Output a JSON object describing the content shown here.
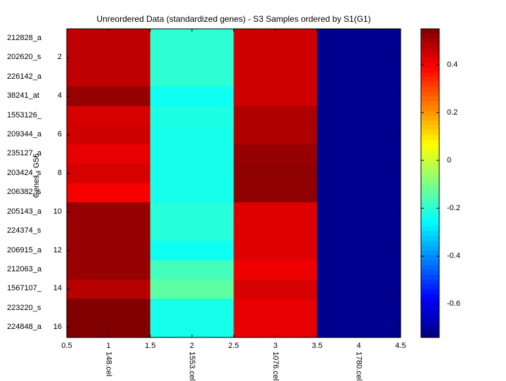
{
  "chart_data": {
    "type": "heatmap",
    "title": "Unreordered Data (standardized genes) - S3 Samples ordered by S1(G1)",
    "ylabel": "Genes - G56",
    "row_labels": [
      "212828_a",
      "202620_s",
      "226142_a",
      "38241_at",
      "1553126_",
      "209344_a",
      "235127_a",
      "203424_s",
      "206382_s",
      "205143_a",
      "224374_s",
      "206915_a",
      "212063_a",
      "1567107_",
      "223220_s",
      "224848_a"
    ],
    "y_ticks": [
      "2",
      "4",
      "6",
      "8",
      "10",
      "12",
      "14",
      "16"
    ],
    "column_labels": [
      "148.cel",
      "1553.cel",
      "1076.cel",
      "1780.cel"
    ],
    "x_ticks": [
      "0.5",
      "1",
      "1.5",
      "2",
      "2.5",
      "3",
      "3.5",
      "4",
      "4.5"
    ],
    "xlim": [
      0.5,
      4.5
    ],
    "ylim": [
      0.5,
      16.5
    ],
    "colormap": "jet",
    "clim": [
      -0.74,
      0.55
    ],
    "colorbar_ticks": [
      "0.4",
      "0.2",
      "0",
      "-0.2",
      "-0.4",
      "-0.6"
    ],
    "values": [
      [
        0.47,
        -0.2,
        0.45,
        -0.72
      ],
      [
        0.47,
        -0.2,
        0.45,
        -0.72
      ],
      [
        0.47,
        -0.2,
        0.45,
        -0.72
      ],
      [
        0.52,
        -0.24,
        0.45,
        -0.72
      ],
      [
        0.44,
        -0.22,
        0.49,
        -0.72
      ],
      [
        0.45,
        -0.23,
        0.49,
        -0.72
      ],
      [
        0.42,
        -0.23,
        0.52,
        -0.72
      ],
      [
        0.44,
        -0.23,
        0.53,
        -0.72
      ],
      [
        0.4,
        -0.23,
        0.53,
        -0.72
      ],
      [
        0.52,
        -0.21,
        0.43,
        -0.72
      ],
      [
        0.52,
        -0.21,
        0.43,
        -0.72
      ],
      [
        0.52,
        -0.24,
        0.43,
        -0.72
      ],
      [
        0.52,
        -0.17,
        0.41,
        -0.72
      ],
      [
        0.48,
        -0.14,
        0.44,
        -0.72
      ],
      [
        0.56,
        -0.23,
        0.42,
        -0.72
      ],
      [
        0.56,
        -0.23,
        0.42,
        -0.72
      ]
    ]
  }
}
